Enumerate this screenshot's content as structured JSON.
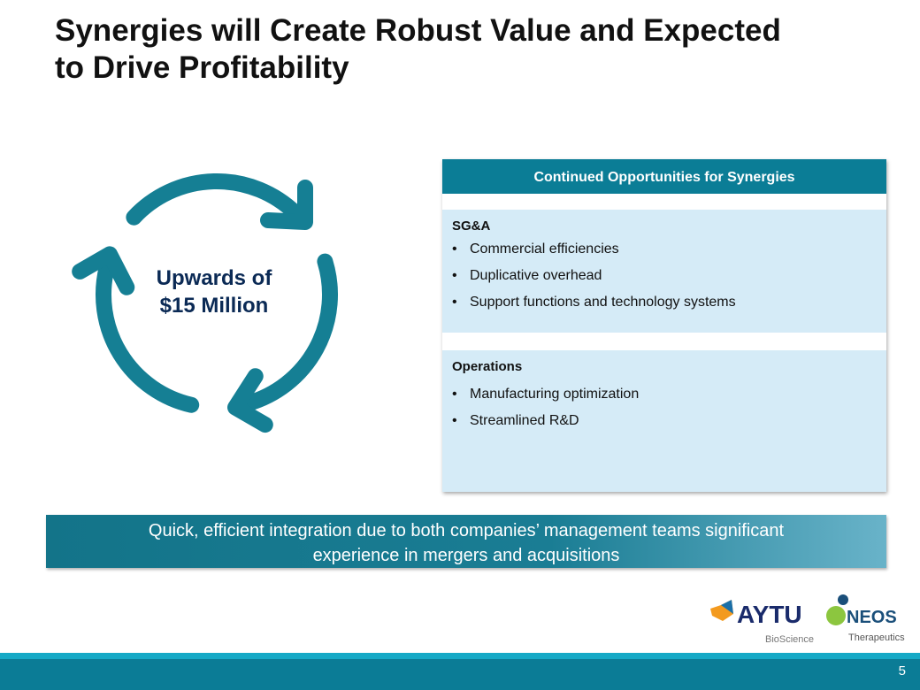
{
  "title": {
    "lines": [
      "Synergies will Create Robust Value and Expected",
      "to Drive Profitability"
    ]
  },
  "cycle": {
    "lines": [
      "Upwards of",
      "$15 Million"
    ]
  },
  "panel": {
    "header": "Continued Opportunities for Synergies",
    "sections": [
      {
        "heading": "SG&A",
        "bullets": [
          "Commercial efficiencies",
          "Duplicative overhead",
          "Support functions and technology systems"
        ]
      },
      {
        "heading": "Operations",
        "bullets": [
          "Manufacturing optimization",
          "Streamlined R&D"
        ]
      }
    ]
  },
  "banner": {
    "lines": [
      "Quick, efficient integration due to both companies’ management teams significant",
      "experience in mergers and acquisitions"
    ]
  },
  "logos": {
    "aytu": "AYTU",
    "aytu_sub": "BioScience",
    "neos": "NEOS",
    "neos_sub": "Therapeutics"
  },
  "footer": {
    "page": "5"
  }
}
